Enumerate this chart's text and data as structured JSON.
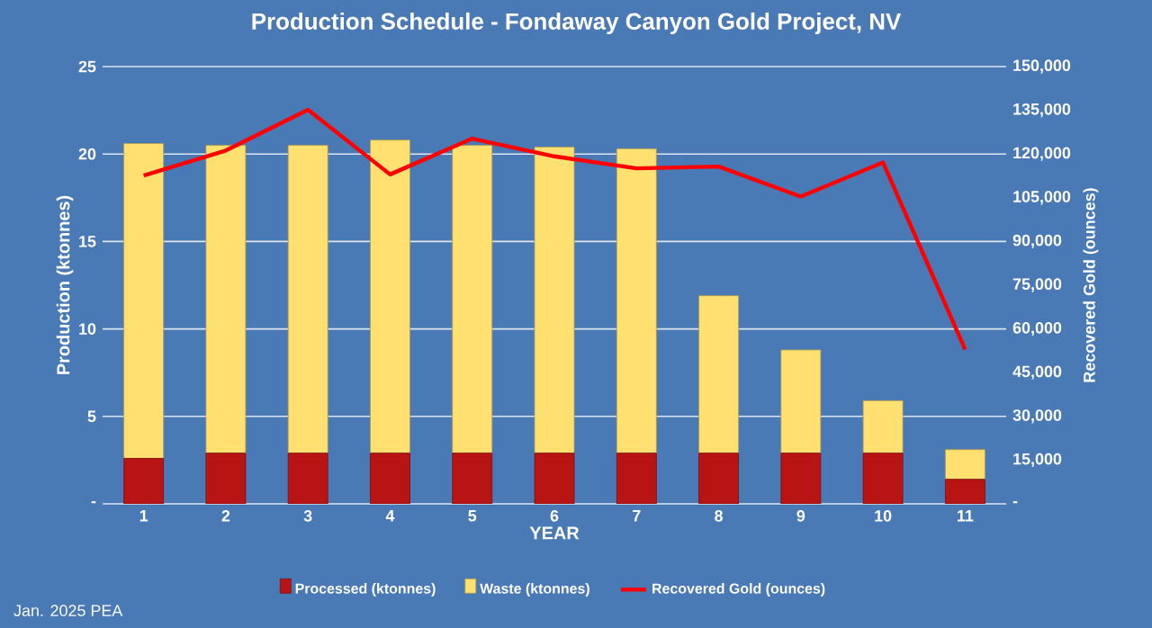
{
  "chart_data": {
    "type": "bar",
    "stacked": true,
    "title": "Production Schedule - Fondaway Canyon Gold Project, NV",
    "xlabel": "YEAR",
    "ylabel": "Production (ktonnes)",
    "y2label": "Recovered Gold (ounces)",
    "categories": [
      "1",
      "2",
      "3",
      "4",
      "5",
      "6",
      "7",
      "8",
      "9",
      "10",
      "11"
    ],
    "series": [
      {
        "name": "Processed (ktonnes)",
        "color": "#b81414",
        "values": [
          2.6,
          2.9,
          2.9,
          2.9,
          2.9,
          2.9,
          2.9,
          2.9,
          2.9,
          2.9,
          1.4
        ]
      },
      {
        "name": "Waste (ktonnes)",
        "color": "#ffe070",
        "values": [
          18.0,
          17.6,
          17.6,
          17.9,
          17.6,
          17.5,
          17.4,
          9.0,
          5.9,
          3.0,
          1.7
        ]
      },
      {
        "name": "Recovered Gold (ounces)",
        "type": "line",
        "axis": "y2",
        "color": "#ff0000",
        "values": [
          112600,
          121200,
          135200,
          113000,
          125300,
          119200,
          115100,
          115700,
          105400,
          117100,
          53000
        ]
      }
    ],
    "ylim": [
      0,
      25
    ],
    "yticks": [
      {
        "value": 0,
        "label": "-"
      },
      5,
      10,
      15,
      20,
      25
    ],
    "y2lim": [
      0,
      150000
    ],
    "y2ticks": [
      {
        "value": 0,
        "label": "-"
      },
      {
        "value": 15000,
        "label": "15,000"
      },
      {
        "value": 30000,
        "label": "30,000"
      },
      {
        "value": 45000,
        "label": "45,000"
      },
      {
        "value": 60000,
        "label": "60,000"
      },
      {
        "value": 75000,
        "label": "75,000"
      },
      {
        "value": 90000,
        "label": "90,000"
      },
      {
        "value": 105000,
        "label": "105,000"
      },
      {
        "value": 120000,
        "label": "120,000"
      },
      {
        "value": 135000,
        "label": "135,000"
      },
      {
        "value": 150000,
        "label": "150,000"
      }
    ],
    "grid": "y",
    "legend": "bottom",
    "annotations": [
      "Jan. 2025 PEA"
    ]
  }
}
